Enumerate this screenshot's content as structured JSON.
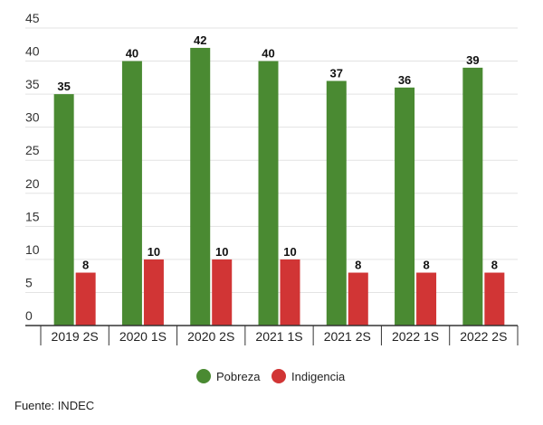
{
  "chart_data": {
    "type": "bar",
    "categories": [
      "2019 2S",
      "2020 1S",
      "2020 2S",
      "2021 1S",
      "2021 2S",
      "2022 1S",
      "2022 2S"
    ],
    "series": [
      {
        "name": "Pobreza",
        "color": "#4a8a32",
        "values": [
          35,
          40,
          42,
          40,
          37,
          36,
          39
        ]
      },
      {
        "name": "Indigencia",
        "color": "#d13535",
        "values": [
          8,
          10,
          10,
          10,
          8,
          8,
          8
        ]
      }
    ],
    "ylim": [
      0,
      45
    ],
    "yticks": [
      0,
      5,
      10,
      15,
      20,
      25,
      30,
      35,
      40,
      45
    ],
    "grid": true,
    "legend": "bottom-center",
    "source": "Fuente: INDEC"
  }
}
